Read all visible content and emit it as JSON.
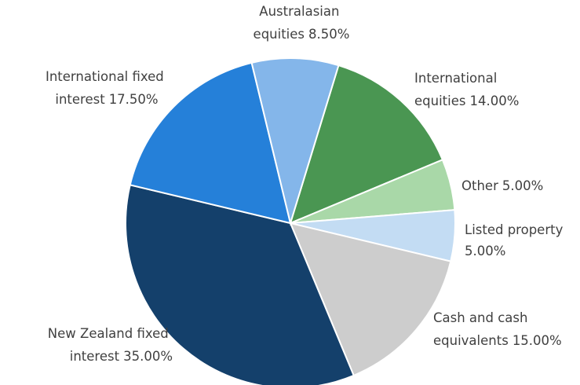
{
  "chart_data": {
    "type": "pie",
    "categories": [
      "International equities",
      "Other",
      "Listed property",
      "Cash and cash equivalents",
      "New Zealand fixed interest",
      "International fixed interest",
      "Australasian equities"
    ],
    "values": [
      14,
      5,
      5,
      15,
      35,
      17.5,
      8.5
    ],
    "value_labels": [
      "14.00%",
      "5.00%",
      "5.00%",
      "15.00%",
      "35.00%",
      "17.50%",
      "8.50%"
    ],
    "colors": [
      "#4a9652",
      "#a9d8a8",
      "#c3dcf3",
      "#cdcdcd",
      "#14406b",
      "#2580d9",
      "#84b6ea"
    ]
  }
}
